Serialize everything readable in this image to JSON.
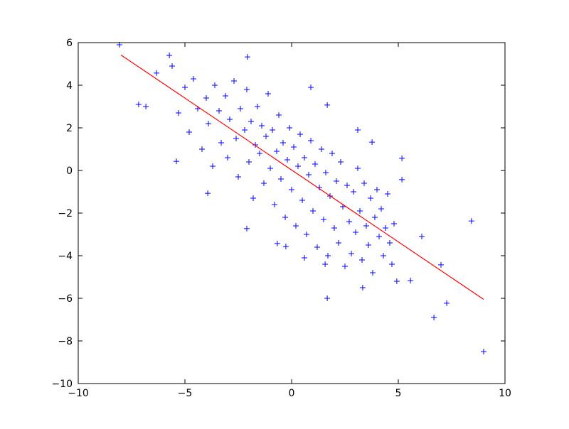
{
  "chart_data": {
    "type": "scatter",
    "xlim": [
      -10,
      10
    ],
    "ylim": [
      -10,
      6
    ],
    "xticks": [
      {
        "value": -10,
        "label": "−10"
      },
      {
        "value": -5,
        "label": "−5"
      },
      0,
      5,
      10
    ],
    "yticks": [
      {
        "value": -10,
        "label": "−10"
      },
      {
        "value": -8,
        "label": "−8"
      },
      {
        "value": -6,
        "label": "−6"
      },
      {
        "value": -4,
        "label": "−4"
      },
      {
        "value": -2,
        "label": "−2"
      },
      0,
      2,
      4,
      6
    ],
    "series": [
      {
        "type": "scatter",
        "color": "#0000ff",
        "x": [
          -8.07,
          -5.73,
          -2.07,
          -6.33,
          -7.17,
          -6.83,
          -5.4,
          -3.93,
          -2.1,
          0.9,
          1.67,
          5.17,
          5.17,
          8.43,
          6.1,
          6.67,
          7.27,
          9.0,
          1.67,
          3.33,
          4.93,
          -0.67,
          -0.27,
          3.77,
          3.1,
          7.0,
          5.57,
          0.6,
          1.57,
          -5.6,
          -5.3,
          -5.0,
          -4.8,
          -4.6,
          -4.4,
          -4.2,
          -4.0,
          -3.9,
          -3.7,
          -3.6,
          -3.4,
          -3.3,
          -3.1,
          -3.0,
          -2.9,
          -2.7,
          -2.6,
          -2.5,
          -2.4,
          -2.2,
          -2.1,
          -2.0,
          -1.9,
          -1.8,
          -1.7,
          -1.6,
          -1.5,
          -1.4,
          -1.3,
          -1.2,
          -1.1,
          -1.0,
          -0.9,
          -0.8,
          -0.7,
          -0.6,
          -0.5,
          -0.4,
          -0.3,
          -0.2,
          -0.1,
          0.0,
          0.1,
          0.2,
          0.3,
          0.4,
          0.5,
          0.6,
          0.7,
          0.8,
          0.9,
          1.0,
          1.1,
          1.2,
          1.3,
          1.4,
          1.5,
          1.6,
          1.7,
          1.8,
          1.9,
          2.0,
          2.1,
          2.2,
          2.3,
          2.4,
          2.5,
          2.6,
          2.7,
          2.8,
          2.9,
          3.0,
          3.1,
          3.2,
          3.3,
          3.4,
          3.5,
          3.6,
          3.7,
          3.8,
          3.9,
          4.0,
          4.1,
          4.2,
          4.3,
          4.4,
          4.5,
          4.6,
          4.7,
          4.8
        ],
        "values": [
          5.9,
          5.4,
          5.33,
          4.57,
          3.1,
          3.0,
          0.43,
          -1.07,
          -2.73,
          3.9,
          3.07,
          0.57,
          -0.43,
          -2.37,
          -3.1,
          -6.9,
          -6.23,
          -8.5,
          -6.0,
          -5.5,
          -5.2,
          -3.43,
          -3.57,
          1.33,
          1.9,
          -4.43,
          -5.17,
          -4.1,
          -4.4,
          4.9,
          2.7,
          3.9,
          1.8,
          4.3,
          2.9,
          1.0,
          3.4,
          2.2,
          0.2,
          4.0,
          2.8,
          1.3,
          3.5,
          0.6,
          2.4,
          4.2,
          1.5,
          -0.3,
          2.9,
          1.9,
          3.8,
          0.4,
          2.3,
          -1.3,
          1.2,
          3.0,
          0.8,
          2.1,
          -0.6,
          1.6,
          3.6,
          0.1,
          1.9,
          -1.6,
          0.9,
          2.6,
          -0.4,
          1.3,
          -2.2,
          0.5,
          2.0,
          -0.9,
          1.1,
          -2.6,
          0.2,
          1.7,
          -1.4,
          0.6,
          -3.0,
          -0.2,
          1.4,
          -1.9,
          0.3,
          -3.6,
          -0.8,
          1.0,
          -2.3,
          -0.1,
          -4.0,
          -1.2,
          0.8,
          -2.7,
          -0.5,
          -3.4,
          0.4,
          -1.7,
          -4.5,
          -0.7,
          -2.4,
          -3.9,
          -1.0,
          -2.9,
          0.1,
          -1.9,
          -4.2,
          -0.6,
          -2.6,
          -3.5,
          -1.3,
          -4.8,
          -2.2,
          -0.9,
          -3.1,
          -1.8,
          -4.0,
          -2.7,
          -1.1,
          -3.4,
          -4.4,
          -2.5
        ]
      },
      {
        "type": "line",
        "color": "#ff0000",
        "x": [
          -8.0,
          9.0
        ],
        "values": [
          5.42,
          -6.05
        ]
      }
    ]
  }
}
